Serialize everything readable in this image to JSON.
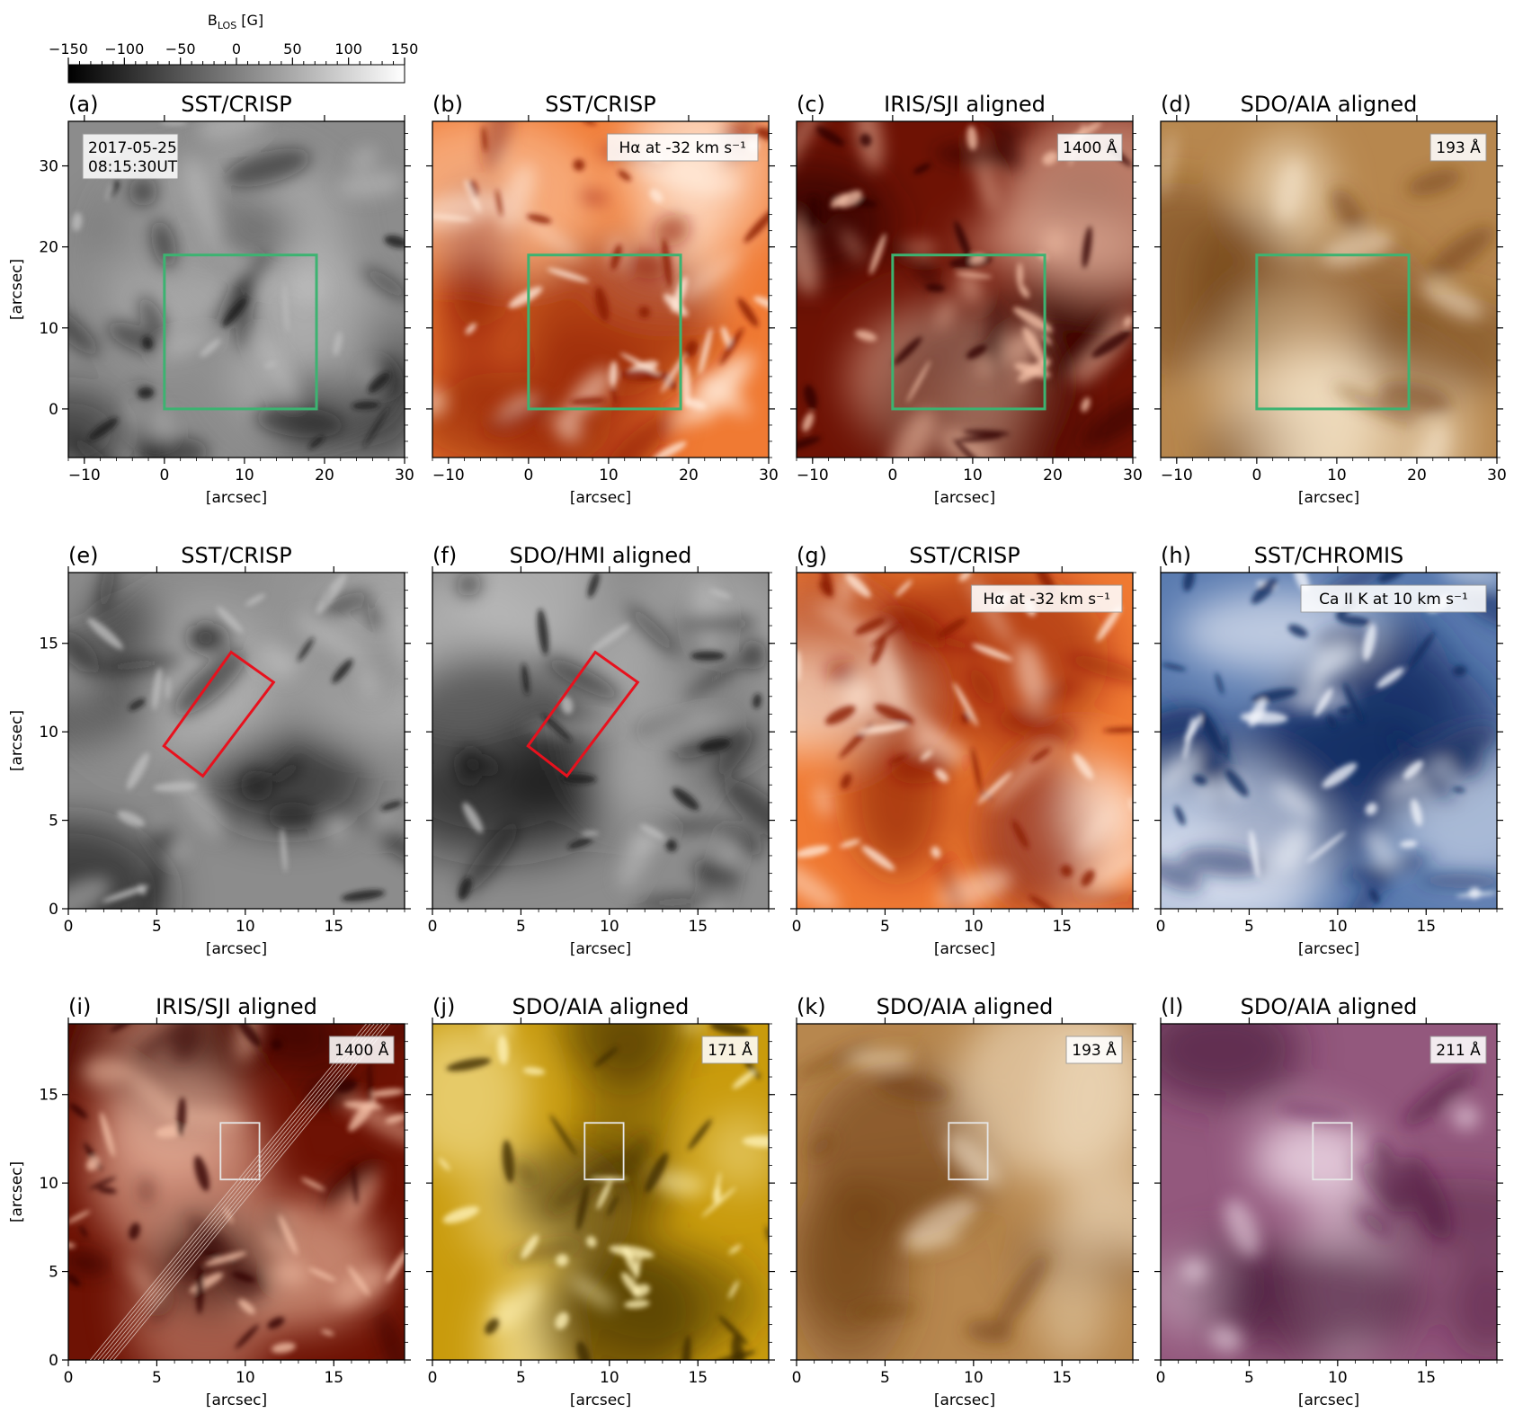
{
  "colorbar": {
    "label_main": "B",
    "label_sub": "LOS",
    "label_unit": " [G]",
    "range": [
      -150,
      150
    ],
    "ticks": [
      "−150",
      "−100",
      "−50",
      "0",
      "50",
      "100",
      "150"
    ],
    "colors": [
      "#000000",
      "#ffffff"
    ]
  },
  "panels": [
    {
      "id": "a",
      "letter": "(a)",
      "title": "SST/CRISP",
      "inset": "2017-05-25",
      "inset2": "08:15:30UT",
      "xticks": [
        "−10",
        "0",
        "10",
        "20",
        "30"
      ],
      "yticks": [
        "0",
        "10",
        "20",
        "30"
      ],
      "xrange": [
        -12,
        30
      ],
      "yrange": [
        -6,
        35.5
      ],
      "xlabel": "[arcsec]",
      "ylabel": "[arcsec]",
      "cmap": "gray",
      "overlay": "green-box"
    },
    {
      "id": "b",
      "letter": "(b)",
      "title": "SST/CRISP",
      "inset": "Hα at -32 km s⁻¹",
      "xticks": [
        "−10",
        "0",
        "10",
        "20",
        "30"
      ],
      "yticks": [],
      "xrange": [
        -12,
        30
      ],
      "yrange": [
        -6,
        35.5
      ],
      "xlabel": "[arcsec]",
      "ylabel": "",
      "cmap": "orange",
      "overlay": "green-box"
    },
    {
      "id": "c",
      "letter": "(c)",
      "title": "IRIS/SJI aligned",
      "inset": "1400 Å",
      "xticks": [
        "−10",
        "0",
        "10",
        "20",
        "30"
      ],
      "yticks": [],
      "xrange": [
        -12,
        30
      ],
      "yrange": [
        -6,
        35.5
      ],
      "xlabel": "[arcsec]",
      "ylabel": "",
      "cmap": "darkred",
      "overlay": "green-box"
    },
    {
      "id": "d",
      "letter": "(d)",
      "title": "SDO/AIA aligned",
      "inset": "193 Å",
      "xticks": [
        "−10",
        "0",
        "10",
        "20",
        "30"
      ],
      "yticks": [],
      "xrange": [
        -12,
        30
      ],
      "yrange": [
        -6,
        35.5
      ],
      "xlabel": "[arcsec]",
      "ylabel": "",
      "cmap": "brown",
      "overlay": "green-box"
    },
    {
      "id": "e",
      "letter": "(e)",
      "title": "SST/CRISP",
      "inset": "",
      "xticks": [
        "0",
        "5",
        "10",
        "15"
      ],
      "yticks": [
        "0",
        "5",
        "10",
        "15"
      ],
      "xrange": [
        0,
        19
      ],
      "yrange": [
        0,
        19
      ],
      "xlabel": "[arcsec]",
      "ylabel": "[arcsec]",
      "cmap": "gray",
      "overlay": "red-rect"
    },
    {
      "id": "f",
      "letter": "(f)",
      "title": "SDO/HMI aligned",
      "inset": "",
      "xticks": [
        "0",
        "5",
        "10",
        "15"
      ],
      "yticks": [],
      "xrange": [
        0,
        19
      ],
      "yrange": [
        0,
        19
      ],
      "xlabel": "[arcsec]",
      "ylabel": "",
      "cmap": "gray",
      "overlay": "red-rect"
    },
    {
      "id": "g",
      "letter": "(g)",
      "title": "SST/CRISP",
      "inset": "Hα at -32 km s⁻¹",
      "xticks": [
        "0",
        "5",
        "10",
        "15"
      ],
      "yticks": [],
      "xrange": [
        0,
        19
      ],
      "yrange": [
        0,
        19
      ],
      "xlabel": "[arcsec]",
      "ylabel": "",
      "cmap": "orange",
      "overlay": "none"
    },
    {
      "id": "h",
      "letter": "(h)",
      "title": "SST/CHROMIS",
      "inset": "Ca II K at 10 km s⁻¹",
      "xticks": [
        "0",
        "5",
        "10",
        "15"
      ],
      "yticks": [],
      "xrange": [
        0,
        19
      ],
      "yrange": [
        0,
        19
      ],
      "xlabel": "[arcsec]",
      "ylabel": "",
      "cmap": "blue",
      "overlay": "none"
    },
    {
      "id": "i",
      "letter": "(i)",
      "title": "IRIS/SJI aligned",
      "inset": "1400 Å",
      "xticks": [
        "0",
        "5",
        "10",
        "15"
      ],
      "yticks": [
        "0",
        "5",
        "10",
        "15"
      ],
      "xrange": [
        0,
        19
      ],
      "yrange": [
        0,
        19
      ],
      "xlabel": "[arcsec]",
      "ylabel": "[arcsec]",
      "cmap": "darkred",
      "overlay": "white-box-slits"
    },
    {
      "id": "j",
      "letter": "(j)",
      "title": "SDO/AIA aligned",
      "inset": "171 Å",
      "xticks": [
        "0",
        "5",
        "10",
        "15"
      ],
      "yticks": [],
      "xrange": [
        0,
        19
      ],
      "yrange": [
        0,
        19
      ],
      "xlabel": "[arcsec]",
      "ylabel": "",
      "cmap": "gold",
      "overlay": "white-box"
    },
    {
      "id": "k",
      "letter": "(k)",
      "title": "SDO/AIA aligned",
      "inset": "193 Å",
      "xticks": [
        "0",
        "5",
        "10",
        "15"
      ],
      "yticks": [],
      "xrange": [
        0,
        19
      ],
      "yrange": [
        0,
        19
      ],
      "xlabel": "[arcsec]",
      "ylabel": "",
      "cmap": "brown",
      "overlay": "white-box"
    },
    {
      "id": "l",
      "letter": "(l)",
      "title": "SDO/AIA aligned",
      "inset": "211 Å",
      "xticks": [
        "0",
        "5",
        "10",
        "15"
      ],
      "yticks": [],
      "xrange": [
        0,
        19
      ],
      "yrange": [
        0,
        19
      ],
      "xlabel": "[arcsec]",
      "ylabel": "",
      "cmap": "purple",
      "overlay": "white-box"
    }
  ],
  "overlays": {
    "green_box": {
      "x": [
        0,
        19
      ],
      "y": [
        0,
        19
      ],
      "color": "#3cb371"
    },
    "red_rect_corners": [
      [
        5.4,
        9.2
      ],
      [
        9.2,
        14.5
      ],
      [
        11.6,
        12.8
      ],
      [
        7.6,
        7.5
      ]
    ],
    "red_color": "#e8111d",
    "white_box": {
      "x": [
        8.6,
        10.8
      ],
      "y": [
        10.2,
        13.4
      ],
      "color": "#e6e6e6"
    },
    "slits": {
      "count": 7,
      "from": [
        1.9,
        0
      ],
      "to": [
        17.5,
        19
      ],
      "spacing": 0.22,
      "color": "#e0c8c0"
    }
  },
  "cmaps": {
    "gray": [
      "#1a1a1a",
      "#8c8c8c",
      "#bdbdbd"
    ],
    "orange": [
      "#8a1a02",
      "#f07a33",
      "#ffe9d8"
    ],
    "darkred": [
      "#2e0500",
      "#6e1204",
      "#f2bfa6"
    ],
    "brown": [
      "#6b3c10",
      "#b7874e",
      "#f7e8cf"
    ],
    "blue": [
      "#12295e",
      "#5a7bb0",
      "#f3f5fb"
    ],
    "gold": [
      "#3d2b02",
      "#c99b0c",
      "#fff2b8"
    ],
    "purple": [
      "#4a1a3a",
      "#93587d",
      "#f6e4ee"
    ]
  }
}
